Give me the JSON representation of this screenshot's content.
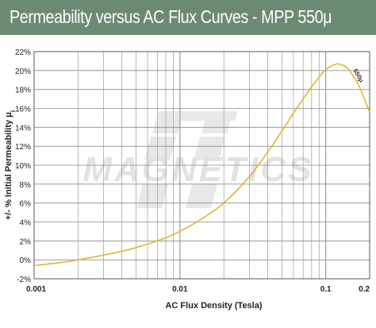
{
  "title": "Permeability versus AC Flux Curves - MPP 550μ",
  "watermark": "MAGNETICS",
  "colors": {
    "title_bar": "#6b8a72",
    "curve": "#e2b530",
    "grid": "#8a8a8a",
    "watermark": "#e4e4e4"
  },
  "chart_data": {
    "type": "line",
    "x_scale": "log",
    "xlim": [
      0.001,
      0.2
    ],
    "ylim": [
      -2,
      22
    ],
    "xlabel": "AC Flux Density (Tesla)",
    "ylabel": "+/- % Initial Permeability μ",
    "ylabel_sub": "i",
    "x_ticks": [
      {
        "value": 0.001,
        "label": "0.001"
      },
      {
        "value": 0.01,
        "label": "0.01"
      },
      {
        "value": 0.1,
        "label": "0.1"
      },
      {
        "value": 0.2,
        "label": "0.2"
      }
    ],
    "y_ticks": [
      {
        "value": 22,
        "label": "22%"
      },
      {
        "value": 20,
        "label": "20%"
      },
      {
        "value": 18,
        "label": "18%"
      },
      {
        "value": 16,
        "label": "16%"
      },
      {
        "value": 14,
        "label": "14%"
      },
      {
        "value": 12,
        "label": "12%"
      },
      {
        "value": 10,
        "label": "10%"
      },
      {
        "value": 8,
        "label": "8%"
      },
      {
        "value": 6,
        "label": "6%"
      },
      {
        "value": 4,
        "label": "4%"
      },
      {
        "value": 2,
        "label": "2%"
      },
      {
        "value": 0,
        "label": "0%"
      },
      {
        "value": -2,
        "label": "-2%"
      }
    ],
    "grid": true,
    "series": [
      {
        "name": "550μ",
        "x": [
          0.001,
          0.0015,
          0.002,
          0.003,
          0.004,
          0.005,
          0.007,
          0.01,
          0.015,
          0.02,
          0.03,
          0.04,
          0.05,
          0.06,
          0.07,
          0.08,
          0.09,
          0.1,
          0.11,
          0.12,
          0.13,
          0.14,
          0.15,
          0.17,
          0.2
        ],
        "y": [
          -0.6,
          -0.3,
          0.0,
          0.5,
          0.9,
          1.3,
          2.0,
          3.0,
          4.6,
          6.0,
          8.8,
          11.4,
          13.6,
          15.5,
          17.0,
          18.3,
          19.3,
          20.1,
          20.5,
          20.7,
          20.6,
          20.3,
          19.7,
          18.3,
          15.6
        ]
      }
    ]
  }
}
